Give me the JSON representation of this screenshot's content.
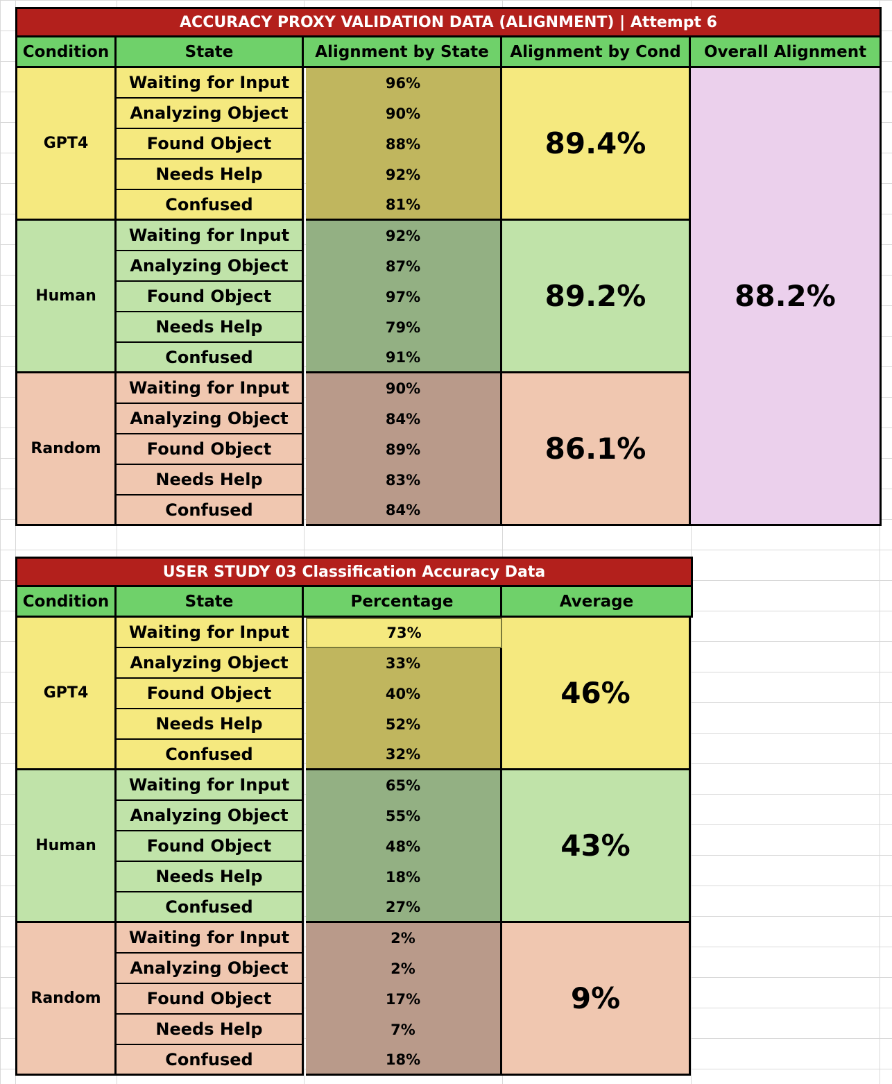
{
  "table1": {
    "title": "ACCURACY PROXY VALIDATION DATA (ALIGNMENT)  |  Attempt 6",
    "headers": [
      "Condition",
      "State",
      "Alignment by State",
      "Alignment by Cond",
      "Overall Alignment"
    ],
    "overall": "88.2%",
    "groups": [
      {
        "condition": "GPT4",
        "average": "89.4%",
        "rows": [
          {
            "state": "Waiting for Input",
            "value": "96%"
          },
          {
            "state": "Analyzing Object",
            "value": "90%"
          },
          {
            "state": "Found Object",
            "value": "88%"
          },
          {
            "state": "Needs Help",
            "value": "92%"
          },
          {
            "state": "Confused",
            "value": "81%"
          }
        ]
      },
      {
        "condition": "Human",
        "average": "89.2%",
        "rows": [
          {
            "state": "Waiting for Input",
            "value": "92%"
          },
          {
            "state": "Analyzing Object",
            "value": "87%"
          },
          {
            "state": "Found Object",
            "value": "97%"
          },
          {
            "state": "Needs Help",
            "value": "79%"
          },
          {
            "state": "Confused",
            "value": "91%"
          }
        ]
      },
      {
        "condition": "Random",
        "average": "86.1%",
        "rows": [
          {
            "state": "Waiting for Input",
            "value": "90%"
          },
          {
            "state": "Analyzing Object",
            "value": "84%"
          },
          {
            "state": "Found Object",
            "value": "89%"
          },
          {
            "state": "Needs Help",
            "value": "83%"
          },
          {
            "state": "Confused",
            "value": "84%"
          }
        ]
      }
    ]
  },
  "table2": {
    "title": "USER STUDY 03 Classification Accuracy Data",
    "headers": [
      "Condition",
      "State",
      "Percentage",
      "Average"
    ],
    "groups": [
      {
        "condition": "GPT4",
        "average": "46%",
        "rows": [
          {
            "state": "Waiting for Input",
            "value": "73%"
          },
          {
            "state": "Analyzing Object",
            "value": "33%"
          },
          {
            "state": "Found Object",
            "value": "40%"
          },
          {
            "state": "Needs Help",
            "value": "52%"
          },
          {
            "state": "Confused",
            "value": "32%"
          }
        ]
      },
      {
        "condition": "Human",
        "average": "43%",
        "rows": [
          {
            "state": "Waiting for Input",
            "value": "65%"
          },
          {
            "state": "Analyzing Object",
            "value": "55%"
          },
          {
            "state": "Found Object",
            "value": "48%"
          },
          {
            "state": "Needs Help",
            "value": "18%"
          },
          {
            "state": "Confused",
            "value": "27%"
          }
        ]
      },
      {
        "condition": "Random",
        "average": "9%",
        "rows": [
          {
            "state": "Waiting for Input",
            "value": "2%"
          },
          {
            "state": "Analyzing Object",
            "value": "2%"
          },
          {
            "state": "Found Object",
            "value": "17%"
          },
          {
            "state": "Needs Help",
            "value": "7%"
          },
          {
            "state": "Confused",
            "value": "18%"
          }
        ]
      }
    ]
  },
  "colors": {
    "title_bg": "#b3201c",
    "header_bg": "#6fd16a",
    "gpt4": "#f5e97f",
    "gpt4_dark": "#c0b65e",
    "human": "#c0e3a9",
    "human_dark": "#93b083",
    "random": "#f0c7b0",
    "random_dark": "#b99a8a",
    "overall": "#ebd0ec"
  }
}
